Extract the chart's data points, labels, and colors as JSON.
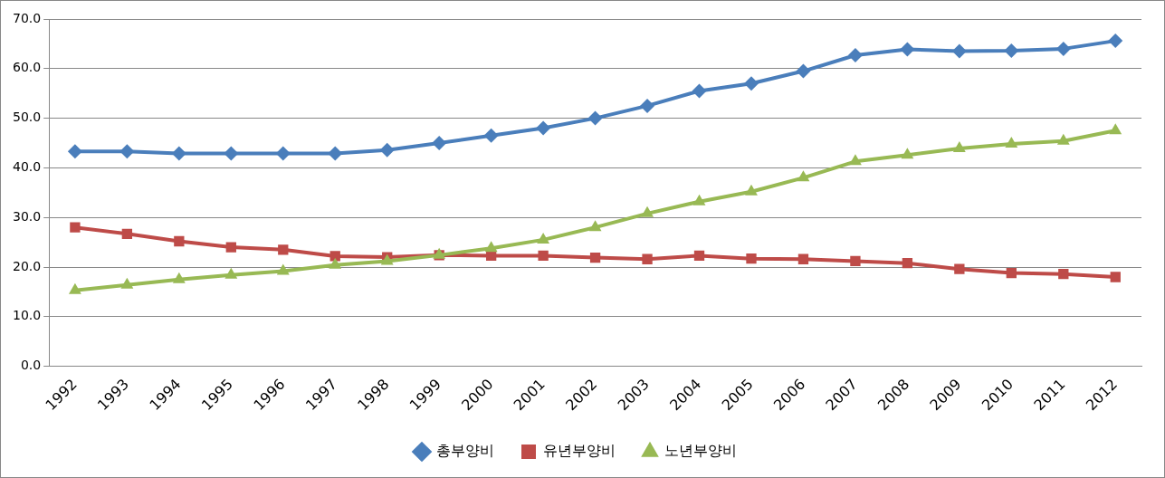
{
  "chart_data": {
    "type": "line",
    "categories": [
      "1992",
      "1993",
      "1994",
      "1995",
      "1996",
      "1997",
      "1998",
      "1999",
      "2000",
      "2001",
      "2002",
      "2003",
      "2004",
      "2005",
      "2006",
      "2007",
      "2008",
      "2009",
      "2010",
      "2011",
      "2012"
    ],
    "series": [
      {
        "name": "총부양비",
        "color": "#4a7ebb",
        "marker": "diamond",
        "values": [
          43.3,
          43.3,
          42.9,
          42.9,
          42.9,
          42.9,
          43.6,
          45.0,
          46.5,
          48.0,
          50.0,
          52.5,
          55.5,
          57.0,
          59.5,
          62.7,
          63.9,
          63.5,
          63.6,
          64.0,
          65.6
        ]
      },
      {
        "name": "유년부양비",
        "color": "#be4b48",
        "marker": "square",
        "values": [
          28.0,
          26.7,
          25.2,
          24.0,
          23.5,
          22.2,
          22.0,
          22.4,
          22.3,
          22.3,
          21.9,
          21.6,
          22.3,
          21.7,
          21.6,
          21.2,
          20.8,
          19.6,
          18.8,
          18.6,
          18.0
        ]
      },
      {
        "name": "노년부양비",
        "color": "#98b954",
        "marker": "triangle",
        "values": [
          15.3,
          16.4,
          17.5,
          18.4,
          19.2,
          20.4,
          21.2,
          22.4,
          23.8,
          25.5,
          28.0,
          30.8,
          33.2,
          35.2,
          38.0,
          41.3,
          42.6,
          43.9,
          44.8,
          45.4,
          47.5
        ]
      }
    ],
    "ylim": [
      0,
      70
    ],
    "yticks": [
      {
        "value": 0,
        "label": "0.0"
      },
      {
        "value": 10,
        "label": "10.0"
      },
      {
        "value": 20,
        "label": "20.0"
      },
      {
        "value": 30,
        "label": "30.0"
      },
      {
        "value": 40,
        "label": "40.0"
      },
      {
        "value": 50,
        "label": "50.0"
      },
      {
        "value": 60,
        "label": "60.0"
      },
      {
        "value": 70,
        "label": "70.0"
      }
    ],
    "grid": "y",
    "legend": "bottom"
  }
}
